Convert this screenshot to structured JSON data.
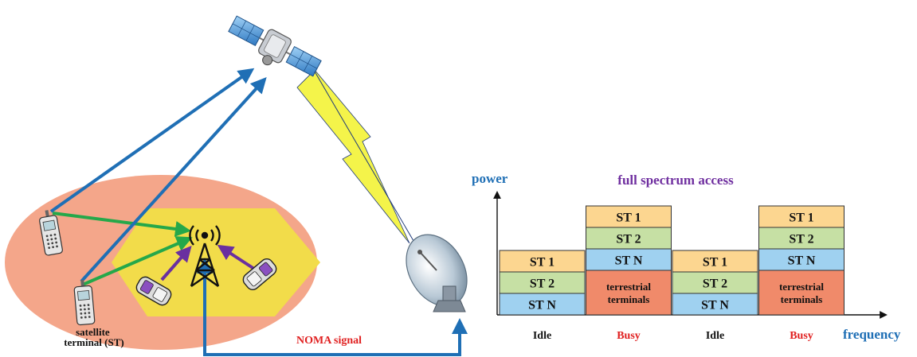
{
  "labels": {
    "satellite_terminal": "satellite terminal (ST)",
    "noma_signal": "NOMA signal",
    "power_axis": "power",
    "frequency_axis": "frequency",
    "chart_title": "full spectrum access"
  },
  "spectrum": {
    "columns": [
      {
        "state": "Idle",
        "blocks": [
          "ST 1",
          "ST 2",
          "ST N"
        ]
      },
      {
        "state": "Busy",
        "blocks": [
          "ST 1",
          "ST 2",
          "ST N",
          "terrestrial terminals"
        ]
      },
      {
        "state": "Idle",
        "blocks": [
          "ST 1",
          "ST 2",
          "ST N"
        ]
      },
      {
        "state": "Busy",
        "blocks": [
          "ST 1",
          "ST 2",
          "ST N",
          "terrestrial terminals"
        ]
      }
    ]
  },
  "colors": {
    "st1": "#fcd690",
    "st2": "#c6e0a4",
    "stn": "#9fd1f0",
    "terrestrial": "#f08a6a",
    "ellipse": "#f4a68a",
    "hexagon": "#f2dc4a",
    "blue_link": "#1f6fb5",
    "green_link": "#25a84a",
    "purple_link": "#6a2fa0",
    "axis_label": "#1f6fb5",
    "title": "#7030a0",
    "busy": "#e02020",
    "idle": "#111111"
  },
  "icons": [
    "satellite-icon",
    "base-station-tower-icon",
    "ground-station-dish-icon",
    "handheld-satellite-phone-icon",
    "mobile-phone-icon",
    "lightning-bolt-icon"
  ]
}
